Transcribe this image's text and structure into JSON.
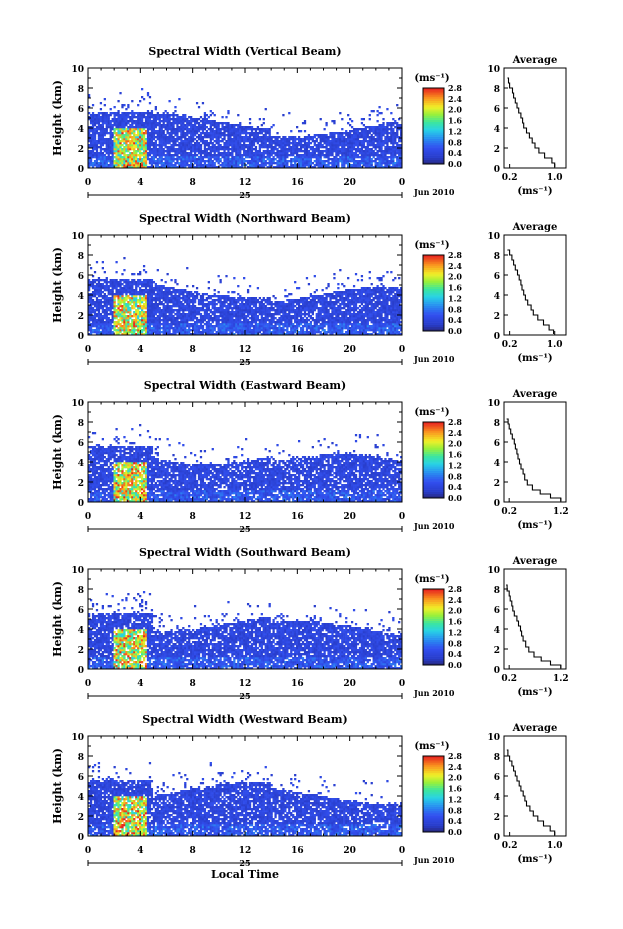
{
  "figure": {
    "xlabel": "Local Time"
  },
  "chart_data": [
    {
      "type": "heatmap",
      "title": "Spectral Width (Vertical Beam)",
      "ylabel": "Height (km)",
      "x_ticks": [
        "0",
        "4",
        "8",
        "12",
        "16",
        "20",
        "0"
      ],
      "y_ticks": [
        "0",
        "2",
        "4",
        "6",
        "8",
        "10"
      ],
      "xlim": [
        0,
        24
      ],
      "ylim": [
        0,
        10
      ],
      "day_label": "25",
      "date_label": "Jun 2010",
      "colorbar": {
        "unit": "(ms⁻¹)",
        "ticks": [
          "0.0",
          "0.4",
          "0.8",
          "1.2",
          "1.6",
          "2.0",
          "2.4",
          "2.8"
        ],
        "range": [
          0,
          2.8
        ]
      },
      "average": {
        "title": "Average",
        "xlabel": "(ms⁻¹)",
        "x_ticks": [
          "0.2",
          "1.0"
        ],
        "xlim": [
          0.1,
          1.2
        ],
        "ylim": [
          0,
          10
        ],
        "y_ticks": [
          "0",
          "2",
          "4",
          "6",
          "8",
          "10"
        ],
        "profile": [
          [
            1.0,
            0.1
          ],
          [
            0.95,
            0.5
          ],
          [
            0.82,
            1.0
          ],
          [
            0.72,
            1.5
          ],
          [
            0.65,
            2.0
          ],
          [
            0.6,
            2.5
          ],
          [
            0.55,
            3.0
          ],
          [
            0.5,
            3.5
          ],
          [
            0.45,
            4.0
          ],
          [
            0.43,
            4.5
          ],
          [
            0.4,
            5.0
          ],
          [
            0.36,
            5.5
          ],
          [
            0.33,
            6.0
          ],
          [
            0.3,
            6.5
          ],
          [
            0.27,
            7.0
          ],
          [
            0.25,
            7.5
          ],
          [
            0.2,
            8.0
          ],
          [
            0.18,
            8.5
          ],
          [
            0.16,
            9.0
          ]
        ]
      }
    },
    {
      "type": "heatmap",
      "title": "Spectral Width (Northward Beam)",
      "ylabel": "Height (km)",
      "x_ticks": [
        "0",
        "4",
        "8",
        "12",
        "16",
        "20",
        "0"
      ],
      "y_ticks": [
        "0",
        "2",
        "4",
        "6",
        "8",
        "10"
      ],
      "xlim": [
        0,
        24
      ],
      "ylim": [
        0,
        10
      ],
      "day_label": "25",
      "date_label": "Jun 2010",
      "colorbar": {
        "unit": "(ms⁻¹)",
        "ticks": [
          "0.0",
          "0.4",
          "0.8",
          "1.2",
          "1.6",
          "2.0",
          "2.4",
          "2.8"
        ],
        "range": [
          0,
          2.8
        ]
      },
      "average": {
        "title": "Average",
        "xlabel": "(ms⁻¹)",
        "x_ticks": [
          "0.2",
          "1.0"
        ],
        "xlim": [
          0.1,
          1.2
        ],
        "ylim": [
          0,
          10
        ],
        "y_ticks": [
          "0",
          "2",
          "4",
          "6",
          "8",
          "10"
        ],
        "profile": [
          [
            0.98,
            0.1
          ],
          [
            0.9,
            0.5
          ],
          [
            0.8,
            1.0
          ],
          [
            0.7,
            1.5
          ],
          [
            0.62,
            2.0
          ],
          [
            0.58,
            2.5
          ],
          [
            0.52,
            3.0
          ],
          [
            0.48,
            3.5
          ],
          [
            0.45,
            4.0
          ],
          [
            0.42,
            4.5
          ],
          [
            0.4,
            5.0
          ],
          [
            0.37,
            5.5
          ],
          [
            0.34,
            6.0
          ],
          [
            0.3,
            6.5
          ],
          [
            0.27,
            7.0
          ],
          [
            0.24,
            7.5
          ],
          [
            0.2,
            8.0
          ],
          [
            0.16,
            8.5
          ]
        ]
      }
    },
    {
      "type": "heatmap",
      "title": "Spectral Width (Eastward Beam)",
      "ylabel": "Height (km)",
      "x_ticks": [
        "0",
        "4",
        "8",
        "12",
        "16",
        "20",
        "0"
      ],
      "y_ticks": [
        "0",
        "2",
        "4",
        "6",
        "8",
        "10"
      ],
      "xlim": [
        0,
        24
      ],
      "ylim": [
        0,
        10
      ],
      "day_label": "25",
      "date_label": "Jun 2010",
      "colorbar": {
        "unit": "(ms⁻¹)",
        "ticks": [
          "0.0",
          "0.4",
          "0.8",
          "1.2",
          "1.6",
          "2.0",
          "2.4",
          "2.8"
        ],
        "range": [
          0,
          2.8
        ]
      },
      "average": {
        "title": "Average",
        "xlabel": "(ms⁻¹)",
        "x_ticks": [
          "0.2",
          "1.2"
        ],
        "xlim": [
          0.1,
          1.3
        ],
        "ylim": [
          0,
          10
        ],
        "y_ticks": [
          "0",
          "2",
          "4",
          "6",
          "8",
          "10"
        ],
        "profile": [
          [
            1.2,
            0.1
          ],
          [
            1.0,
            0.4
          ],
          [
            0.8,
            0.8
          ],
          [
            0.65,
            1.2
          ],
          [
            0.55,
            1.7
          ],
          [
            0.5,
            2.2
          ],
          [
            0.47,
            2.8
          ],
          [
            0.43,
            3.3
          ],
          [
            0.4,
            3.8
          ],
          [
            0.37,
            4.3
          ],
          [
            0.35,
            4.8
          ],
          [
            0.32,
            5.3
          ],
          [
            0.3,
            5.8
          ],
          [
            0.26,
            6.3
          ],
          [
            0.23,
            6.8
          ],
          [
            0.2,
            7.3
          ],
          [
            0.18,
            7.8
          ],
          [
            0.15,
            8.3
          ]
        ]
      }
    },
    {
      "type": "heatmap",
      "title": "Spectral Width (Southward Beam)",
      "ylabel": "Height (km)",
      "x_ticks": [
        "0",
        "4",
        "8",
        "12",
        "16",
        "20",
        "0"
      ],
      "y_ticks": [
        "0",
        "2",
        "4",
        "6",
        "8",
        "10"
      ],
      "xlim": [
        0,
        24
      ],
      "ylim": [
        0,
        10
      ],
      "day_label": "25",
      "date_label": "Jun 2010",
      "colorbar": {
        "unit": "(ms⁻¹)",
        "ticks": [
          "0.0",
          "0.4",
          "0.8",
          "1.2",
          "1.6",
          "2.0",
          "2.4",
          "2.8"
        ],
        "range": [
          0,
          2.8
        ]
      },
      "average": {
        "title": "Average",
        "xlabel": "(ms⁻¹)",
        "x_ticks": [
          "0.2",
          "1.2"
        ],
        "xlim": [
          0.1,
          1.3
        ],
        "ylim": [
          0,
          10
        ],
        "y_ticks": [
          "0",
          "2",
          "4",
          "6",
          "8",
          "10"
        ],
        "profile": [
          [
            1.2,
            0.1
          ],
          [
            1.0,
            0.4
          ],
          [
            0.82,
            0.8
          ],
          [
            0.68,
            1.2
          ],
          [
            0.58,
            1.7
          ],
          [
            0.52,
            2.2
          ],
          [
            0.47,
            2.8
          ],
          [
            0.44,
            3.3
          ],
          [
            0.42,
            3.8
          ],
          [
            0.38,
            4.3
          ],
          [
            0.35,
            4.8
          ],
          [
            0.3,
            5.3
          ],
          [
            0.27,
            5.8
          ],
          [
            0.25,
            6.3
          ],
          [
            0.22,
            6.8
          ],
          [
            0.2,
            7.3
          ],
          [
            0.16,
            7.8
          ],
          [
            0.14,
            8.4
          ]
        ]
      }
    },
    {
      "type": "heatmap",
      "title": "Spectral Width (Westward Beam)",
      "ylabel": "Height (km)",
      "x_ticks": [
        "0",
        "4",
        "8",
        "12",
        "16",
        "20",
        "0"
      ],
      "y_ticks": [
        "0",
        "2",
        "4",
        "6",
        "8",
        "10"
      ],
      "xlim": [
        0,
        24
      ],
      "ylim": [
        0,
        10
      ],
      "day_label": "25",
      "date_label": "Jun 2010",
      "colorbar": {
        "unit": "(ms⁻¹)",
        "ticks": [
          "0.0",
          "0.4",
          "0.8",
          "1.2",
          "1.6",
          "2.0",
          "2.4",
          "2.8"
        ],
        "range": [
          0,
          2.8
        ]
      },
      "average": {
        "title": "Average",
        "xlabel": "(ms⁻¹)",
        "x_ticks": [
          "0.2",
          "1.0"
        ],
        "xlim": [
          0.1,
          1.2
        ],
        "ylim": [
          0,
          10
        ],
        "y_ticks": [
          "0",
          "2",
          "4",
          "6",
          "8",
          "10"
        ],
        "profile": [
          [
            1.0,
            0.1
          ],
          [
            0.92,
            0.5
          ],
          [
            0.8,
            1.0
          ],
          [
            0.7,
            1.5
          ],
          [
            0.62,
            2.0
          ],
          [
            0.56,
            2.5
          ],
          [
            0.5,
            3.0
          ],
          [
            0.47,
            3.5
          ],
          [
            0.44,
            4.0
          ],
          [
            0.4,
            4.5
          ],
          [
            0.37,
            5.0
          ],
          [
            0.33,
            5.5
          ],
          [
            0.3,
            6.0
          ],
          [
            0.27,
            6.5
          ],
          [
            0.24,
            7.0
          ],
          [
            0.2,
            7.5
          ],
          [
            0.17,
            8.0
          ],
          [
            0.15,
            8.6
          ]
        ]
      }
    }
  ]
}
